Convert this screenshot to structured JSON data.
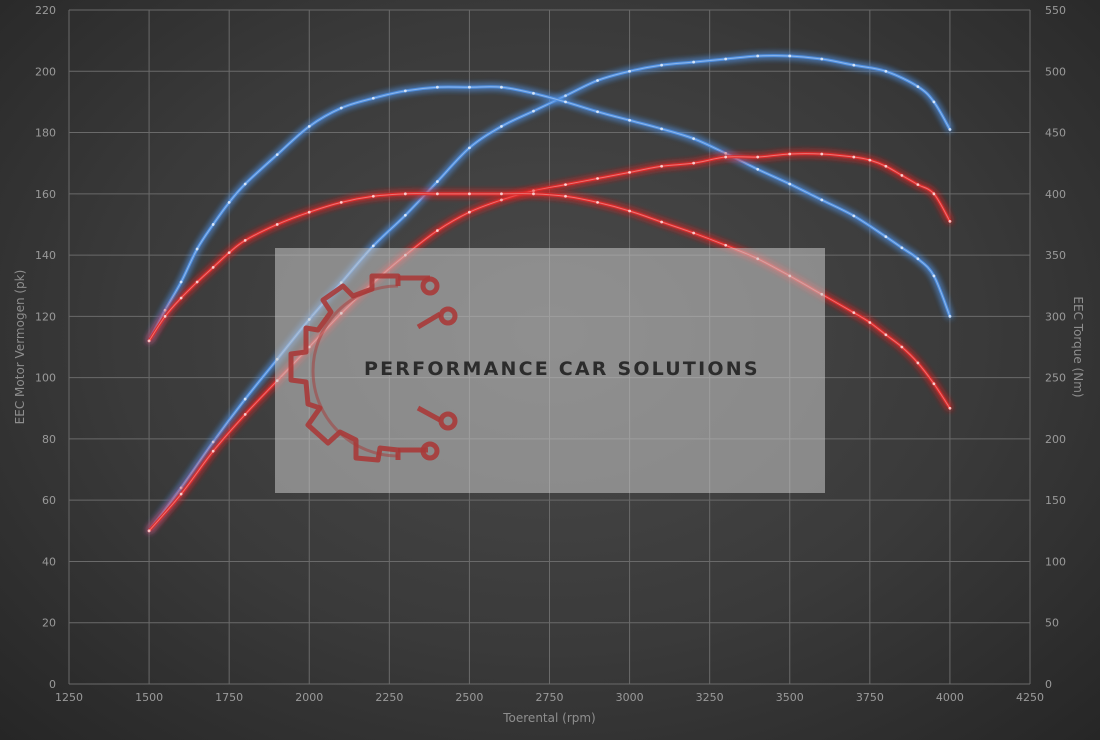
{
  "chart_data": {
    "type": "line",
    "xlabel": "Toerental (rpm)",
    "ylabel_left": "EEC Motor Vermogen (pk)",
    "ylabel_right": "EEC Torque (Nm)",
    "xlim": [
      1250,
      4250
    ],
    "ylim_left": [
      0,
      220
    ],
    "ylim_right": [
      0,
      550
    ],
    "x_ticks": [
      "1250",
      "1500",
      "1750",
      "2000",
      "2250",
      "2500",
      "2750",
      "3000",
      "3250",
      "3500",
      "3750",
      "4000",
      "4250"
    ],
    "y_left_ticks": [
      "0",
      "20",
      "40",
      "60",
      "80",
      "100",
      "120",
      "140",
      "160",
      "180",
      "200",
      "220"
    ],
    "y_right_ticks": [
      "0",
      "50",
      "100",
      "150",
      "200",
      "250",
      "300",
      "350",
      "400",
      "450",
      "500",
      "550"
    ],
    "grid": true,
    "series": [
      {
        "color": "#4f8fe0",
        "axis": "left",
        "x": [
          1500,
          1600,
          1700,
          1800,
          1900,
          2000,
          2100,
          2200,
          2300,
          2400,
          2500,
          2600,
          2700,
          2800,
          2900,
          3000,
          3100,
          3200,
          3300,
          3400,
          3500,
          3600,
          3700,
          3800,
          3900,
          3950,
          4000
        ],
        "values": [
          50,
          64,
          79,
          93,
          106,
          119,
          131,
          143,
          153,
          164,
          175,
          182,
          187,
          192,
          197,
          200,
          202,
          203,
          204,
          205,
          205,
          204,
          202,
          200,
          195,
          190,
          181
        ]
      },
      {
        "color": "#4f8fe0",
        "axis": "right",
        "x": [
          1500,
          1550,
          1600,
          1650,
          1700,
          1750,
          1800,
          1900,
          2000,
          2100,
          2200,
          2300,
          2400,
          2500,
          2600,
          2700,
          2800,
          2900,
          3000,
          3100,
          3200,
          3300,
          3400,
          3500,
          3600,
          3700,
          3800,
          3850,
          3900,
          3950,
          4000
        ],
        "values": [
          280,
          305,
          328,
          355,
          375,
          393,
          408,
          432,
          455,
          470,
          478,
          484,
          487,
          487,
          487,
          482,
          475,
          467,
          460,
          453,
          445,
          433,
          420,
          408,
          395,
          382,
          365,
          356,
          347,
          333,
          300
        ]
      },
      {
        "color": "#e02a2a",
        "axis": "left",
        "x": [
          1500,
          1600,
          1700,
          1800,
          1900,
          2000,
          2100,
          2200,
          2300,
          2400,
          2500,
          2600,
          2700,
          2800,
          2900,
          3000,
          3100,
          3200,
          3300,
          3400,
          3500,
          3600,
          3700,
          3750,
          3800,
          3850,
          3900,
          3950,
          4000
        ],
        "values": [
          50,
          62,
          76,
          88,
          99,
          110,
          121,
          131,
          140,
          148,
          154,
          158,
          161,
          163,
          165,
          167,
          169,
          170,
          172,
          172,
          173,
          173,
          172,
          171,
          169,
          166,
          163,
          160,
          151
        ]
      },
      {
        "color": "#e02a2a",
        "axis": "right",
        "x": [
          1500,
          1550,
          1600,
          1650,
          1700,
          1750,
          1800,
          1900,
          2000,
          2100,
          2200,
          2300,
          2400,
          2500,
          2600,
          2700,
          2800,
          2900,
          3000,
          3100,
          3200,
          3300,
          3400,
          3500,
          3600,
          3700,
          3750,
          3800,
          3850,
          3900,
          3950,
          4000
        ],
        "values": [
          280,
          300,
          315,
          328,
          340,
          352,
          362,
          375,
          385,
          393,
          398,
          400,
          400,
          400,
          400,
          400,
          398,
          393,
          386,
          377,
          368,
          358,
          347,
          333,
          318,
          303,
          295,
          285,
          275,
          262,
          245,
          225
        ]
      }
    ]
  },
  "watermark": {
    "text": "PERFORMANCE CAR SOLUTIONS",
    "icon": "gear-circuit-logo",
    "logo_color": "#b03030"
  }
}
